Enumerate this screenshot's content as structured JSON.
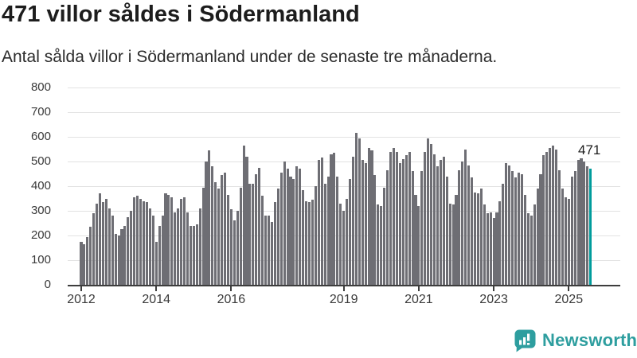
{
  "header": {
    "title": "471 villor såldes i Södermanland",
    "subtitle": "Antal sålda villor i Södermanland under de senaste tre månaderna."
  },
  "chart_data": {
    "type": "bar",
    "title": "471 villor såldes i Södermanland",
    "subtitle": "Antal sålda villor i Södermanland under de senaste tre månaderna.",
    "frequency": "monthly",
    "x_start": "2012-01",
    "x_end": "2025-08",
    "values": [
      175,
      165,
      195,
      235,
      290,
      330,
      370,
      335,
      350,
      310,
      280,
      205,
      200,
      225,
      240,
      275,
      300,
      355,
      360,
      350,
      340,
      335,
      310,
      280,
      175,
      240,
      280,
      370,
      365,
      355,
      295,
      310,
      350,
      355,
      295,
      240,
      240,
      245,
      310,
      395,
      500,
      545,
      480,
      415,
      390,
      445,
      455,
      365,
      305,
      260,
      300,
      395,
      565,
      520,
      410,
      410,
      450,
      475,
      360,
      280,
      280,
      255,
      335,
      390,
      455,
      500,
      470,
      440,
      430,
      480,
      470,
      385,
      340,
      335,
      345,
      400,
      505,
      515,
      410,
      440,
      530,
      535,
      440,
      330,
      300,
      350,
      430,
      520,
      615,
      595,
      505,
      495,
      555,
      545,
      445,
      325,
      320,
      395,
      465,
      540,
      555,
      540,
      495,
      510,
      525,
      540,
      460,
      365,
      320,
      460,
      540,
      595,
      570,
      530,
      480,
      505,
      520,
      440,
      330,
      325,
      365,
      465,
      500,
      550,
      485,
      435,
      375,
      370,
      390,
      325,
      290,
      295,
      270,
      295,
      340,
      410,
      495,
      485,
      460,
      435,
      455,
      450,
      365,
      290,
      280,
      325,
      390,
      450,
      525,
      540,
      555,
      565,
      550,
      465,
      390,
      355,
      350,
      440,
      460,
      505,
      512,
      500,
      480,
      471
    ],
    "highlight": {
      "index": 163,
      "value": 471,
      "label": "471"
    },
    "y_axis": {
      "min": 0,
      "max": 800,
      "tick_interval": 100,
      "tick_labels": [
        "0",
        "100",
        "200",
        "300",
        "400",
        "500",
        "600",
        "700",
        "800"
      ]
    },
    "x_axis": {
      "tick_labels": [
        "2012",
        "2014",
        "2016",
        "2019",
        "2021",
        "2023",
        "2025"
      ],
      "tick_month_offsets": [
        0,
        24,
        48,
        84,
        108,
        132,
        156
      ]
    },
    "grid": true,
    "legend": false,
    "colors": {
      "bar": "#6e6e74",
      "highlight": "#009c9c",
      "grid": "#e2e2e2",
      "axis": "#3d3d3d"
    }
  },
  "footer": {
    "brand": "Newsworthy",
    "logo_color": "#2e9e9f",
    "logo_icon": "bar-chart-speech-bubble"
  }
}
